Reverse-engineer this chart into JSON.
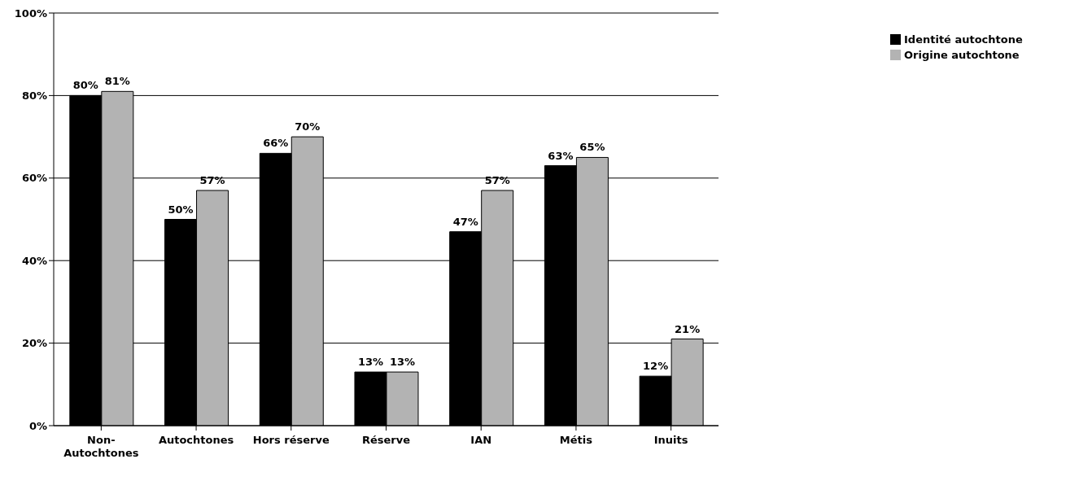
{
  "chart_data": {
    "type": "bar",
    "categories": [
      "Non-Autochtones",
      "Autochtones",
      "Hors réserve",
      "Réserve",
      "IAN",
      "Métis",
      "Inuits"
    ],
    "series": [
      {
        "name": "Identité autochtone",
        "color": "#000000",
        "values": [
          80,
          50,
          66,
          13,
          47,
          63,
          12
        ],
        "value_labels": [
          "80%",
          "50%",
          "66%",
          "13%",
          "47%",
          "63%",
          "12%"
        ]
      },
      {
        "name": "Origine autochtone",
        "color": "#b3b3b3",
        "values": [
          81,
          57,
          70,
          13,
          57,
          65,
          21
        ],
        "value_labels": [
          "81%",
          "57%",
          "70%",
          "13%",
          "57%",
          "65%",
          "21%"
        ]
      }
    ],
    "ylim": [
      0,
      100
    ],
    "yticks": [
      {
        "value": 0,
        "label": "0%"
      },
      {
        "value": 20,
        "label": "20%"
      },
      {
        "value": 40,
        "label": "40%"
      },
      {
        "value": 60,
        "label": "60%"
      },
      {
        "value": 80,
        "label": "80%"
      },
      {
        "value": 100,
        "label": "100%"
      }
    ],
    "grid": "y",
    "legend": "top right"
  }
}
